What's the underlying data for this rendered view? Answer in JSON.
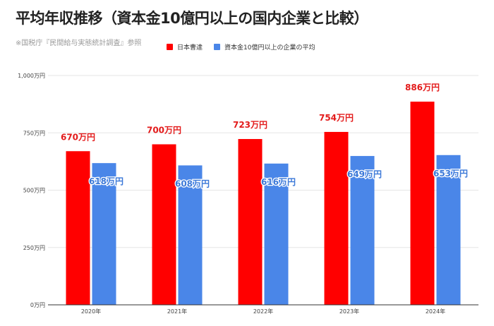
{
  "title": "平均年収推移（資本金10億円以上の国内企業と比較）",
  "source": "※国税庁『民間給与実態統計調査』参照",
  "colors": {
    "company": "#ff0000",
    "average": "#4a86e8",
    "grid": "#e6e6e6",
    "axis": "#333333"
  },
  "chart_data": {
    "type": "bar",
    "categories": [
      "2020年",
      "2021年",
      "2022年",
      "2023年",
      "2024年"
    ],
    "series": [
      {
        "name": "日本曹達",
        "values": [
          670,
          700,
          723,
          754,
          886
        ],
        "labels": [
          "670万円",
          "700万円",
          "723万円",
          "754万円",
          "886万円"
        ]
      },
      {
        "name": "資本金10億円以上の企業の平均",
        "values": [
          618,
          608,
          616,
          649,
          653
        ],
        "labels": [
          "618万円",
          "608万円",
          "616万円",
          "649万円",
          "653万円"
        ]
      }
    ],
    "yticks": [
      0,
      250,
      500,
      750,
      1000
    ],
    "ytick_labels": [
      "0万円",
      "250万円",
      "500万円",
      "750万円",
      "1,000万円"
    ],
    "ylim": [
      0,
      1000
    ],
    "grid": true,
    "legend_position": "top"
  }
}
